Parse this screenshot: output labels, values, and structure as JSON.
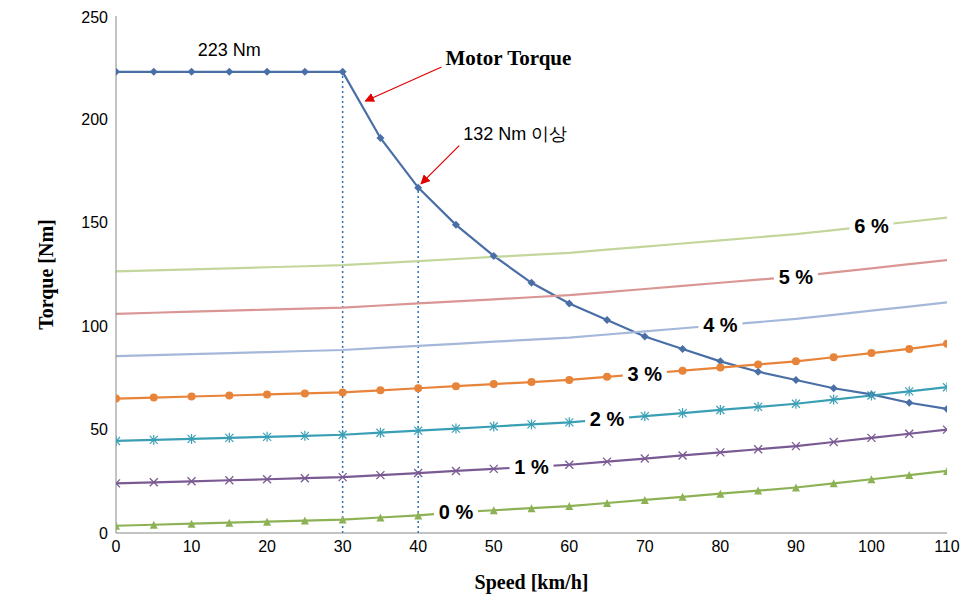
{
  "chart_data": {
    "type": "line",
    "x_label": "Speed [km/h]",
    "y_label": "Torque [Nm]",
    "grid": false,
    "x": [
      0,
      5,
      10,
      15,
      20,
      25,
      30,
      35,
      40,
      45,
      50,
      55,
      60,
      65,
      70,
      75,
      80,
      85,
      90,
      95,
      100,
      105,
      110
    ],
    "xlim": [
      0,
      110
    ],
    "xticks": [
      0,
      10,
      20,
      30,
      40,
      50,
      60,
      70,
      80,
      90,
      100,
      110
    ],
    "ylim": [
      0,
      250
    ],
    "yticks": [
      0,
      50,
      100,
      150,
      200,
      250
    ],
    "series": [
      {
        "name": "Motor Torque",
        "color": "#4a6ea6",
        "marker": "diamond",
        "values": [
          223,
          223,
          223,
          223,
          223,
          223,
          223,
          191,
          167,
          149,
          134,
          121,
          111,
          103,
          95,
          89,
          83,
          78,
          74,
          70,
          67,
          63,
          60
        ]
      },
      {
        "name": "0 %",
        "color": "#8db255",
        "marker": "triangle",
        "values": [
          3.5,
          4,
          4.5,
          5,
          5.5,
          6,
          6.5,
          7.5,
          8.5,
          10,
          11,
          12,
          13,
          14.5,
          16,
          17.5,
          19,
          20.5,
          22,
          24,
          26,
          28,
          30
        ]
      },
      {
        "name": "1 %",
        "color": "#7a5a93",
        "marker": "x",
        "values": [
          24,
          24.5,
          25,
          25.5,
          26,
          26.5,
          27,
          28,
          29,
          30,
          31,
          32,
          33,
          34.5,
          36,
          37.5,
          39,
          40.5,
          42,
          44,
          46,
          48,
          50
        ]
      },
      {
        "name": "2 %",
        "color": "#3a9fb5",
        "marker": "asterisk",
        "values": [
          44.5,
          45,
          45.5,
          46,
          46.5,
          47,
          47.5,
          48.5,
          49.5,
          50.5,
          51.5,
          52.5,
          53.5,
          55,
          56.5,
          58,
          59.5,
          61,
          62.5,
          64.5,
          66.5,
          68.5,
          70.5
        ]
      },
      {
        "name": "3 %",
        "color": "#e8833a",
        "marker": "circle",
        "values": [
          65,
          65.5,
          66,
          66.5,
          67,
          67.5,
          68,
          69,
          70,
          71,
          72,
          73,
          74,
          75.5,
          77,
          78.5,
          80,
          81.5,
          83,
          85,
          87,
          89,
          91.5
        ]
      },
      {
        "name": "4 %",
        "color": "#a5b8da",
        "marker": "none",
        "values": [
          85.5,
          86,
          86.5,
          87,
          87.5,
          88,
          88.5,
          89.5,
          90.5,
          91.5,
          92.5,
          93.5,
          94.5,
          96,
          97.5,
          99,
          100.5,
          102,
          103.5,
          105.5,
          107.5,
          109.5,
          111.5
        ]
      },
      {
        "name": "5 %",
        "color": "#d99694",
        "marker": "none",
        "values": [
          106,
          106.5,
          107,
          107.5,
          108,
          108.5,
          109,
          110,
          111,
          112,
          113,
          114,
          115,
          116.5,
          118,
          119.5,
          121,
          122.5,
          124,
          126,
          128,
          130,
          132
        ]
      },
      {
        "name": "6 %",
        "color": "#c3d69b",
        "marker": "none",
        "values": [
          126.5,
          127,
          127.5,
          128,
          128.5,
          129,
          129.5,
          130.5,
          131.5,
          132.5,
          133.5,
          134.5,
          135.5,
          137,
          138.5,
          140,
          141.5,
          143,
          144.5,
          146.5,
          148.5,
          150.5,
          152.5
        ]
      }
    ],
    "annotations": [
      {
        "text": "223 Nm",
        "x": 15,
        "y": 223
      },
      {
        "text": "132 Nm 이상",
        "x": 40,
        "y": 167
      }
    ],
    "reference_lines": {
      "x": [
        30,
        40
      ]
    }
  }
}
